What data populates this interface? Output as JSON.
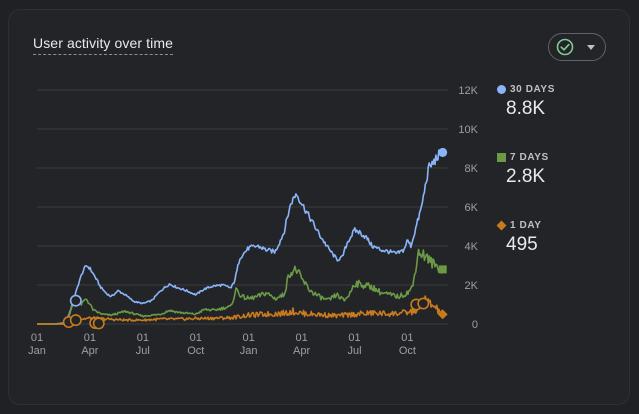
{
  "card": {
    "title": "User activity over time"
  },
  "picker": {
    "check_icon": "check-circle-icon",
    "caret_icon": "caret-down-icon",
    "check_color": "#81c995"
  },
  "legend": [
    {
      "label": "30 DAYS",
      "value": "8.8K",
      "marker": "circle",
      "color": "#8ab4f8"
    },
    {
      "label": "7 DAYS",
      "value": "2.8K",
      "marker": "square",
      "color": "#6a9a45"
    },
    {
      "label": "1 DAY",
      "value": "495",
      "marker": "diamond",
      "color": "#c87a1e"
    }
  ],
  "chart_data": {
    "type": "line",
    "title": "User activity over time",
    "xlabel": "",
    "ylabel": "",
    "ylim": [
      0,
      12000
    ],
    "yticks": [
      0,
      2000,
      4000,
      6000,
      8000,
      10000,
      12000
    ],
    "ytick_labels": [
      "0",
      "2K",
      "4K",
      "6K",
      "8K",
      "10K",
      "12K"
    ],
    "xlim": [
      0,
      23.3
    ],
    "xticks": [
      0,
      3,
      6,
      9,
      12,
      15,
      18,
      21
    ],
    "xtick_labels": [
      [
        "01",
        "Jan"
      ],
      [
        "01",
        "Apr"
      ],
      [
        "01",
        "Jul"
      ],
      [
        "01",
        "Oct"
      ],
      [
        "01",
        "Jan"
      ],
      [
        "01",
        "Apr"
      ],
      [
        "01",
        "Jul"
      ],
      [
        "01",
        "Oct"
      ]
    ],
    "grid": true,
    "legend_position": "right",
    "series": [
      {
        "name": "30 DAYS",
        "color": "#8ab4f8",
        "x": [
          0,
          1.0,
          1.5,
          1.8,
          2.1,
          2.4,
          2.6,
          2.8,
          3.0,
          3.3,
          3.6,
          3.9,
          4.2,
          4.6,
          5.0,
          5.5,
          6.0,
          6.5,
          7.0,
          7.5,
          8.0,
          8.5,
          9.0,
          9.5,
          10.0,
          10.5,
          11.0,
          11.2,
          11.5,
          12.0,
          12.5,
          13.0,
          13.5,
          14.0,
          14.2,
          14.4,
          14.7,
          15.0,
          15.5,
          16.0,
          16.5,
          17.0,
          17.3,
          17.6,
          18.0,
          18.3,
          18.7,
          19.0,
          19.5,
          20.0,
          20.4,
          20.8,
          21.0,
          21.2,
          21.5,
          21.8,
          22.0,
          22.2,
          22.5,
          22.8,
          23.0
        ],
        "y": [
          0,
          0,
          50,
          450,
          1300,
          2200,
          2700,
          3000,
          2850,
          2400,
          1900,
          1600,
          1400,
          1700,
          1500,
          1150,
          1050,
          1200,
          1700,
          2050,
          1850,
          1700,
          1500,
          1800,
          1950,
          2000,
          1850,
          2200,
          3400,
          3900,
          4000,
          3800,
          3700,
          4700,
          5500,
          6200,
          6700,
          6200,
          5400,
          4600,
          3900,
          3300,
          3400,
          4200,
          4800,
          4700,
          4400,
          4000,
          3800,
          3700,
          3600,
          3800,
          4300,
          4000,
          5000,
          6000,
          7000,
          8000,
          8300,
          8700,
          8800
        ]
      },
      {
        "name": "7 DAYS",
        "color": "#6a9a45",
        "x": [
          0,
          1.5,
          1.8,
          2.0,
          2.2,
          2.5,
          2.8,
          3.2,
          3.7,
          4.2,
          5.0,
          6.0,
          7.0,
          7.5,
          8.0,
          9.0,
          9.5,
          10.0,
          11.0,
          11.3,
          11.6,
          12.0,
          12.5,
          13.0,
          13.5,
          14.0,
          14.3,
          14.7,
          15.0,
          15.5,
          16.0,
          16.5,
          17.0,
          17.4,
          17.7,
          18.0,
          18.5,
          19.0,
          19.5,
          20.0,
          20.5,
          21.0,
          21.3,
          21.6,
          22.0,
          22.3,
          22.6,
          23.0
        ],
        "y": [
          0,
          0,
          400,
          900,
          1200,
          1000,
          1300,
          700,
          500,
          450,
          650,
          400,
          500,
          700,
          600,
          500,
          750,
          700,
          900,
          1800,
          1400,
          1300,
          1400,
          1600,
          1300,
          1500,
          2600,
          2800,
          2300,
          1700,
          1400,
          1200,
          1500,
          1200,
          1500,
          2100,
          2000,
          1900,
          1600,
          1500,
          1400,
          1600,
          1900,
          3700,
          3500,
          3200,
          3000,
          2800
        ]
      },
      {
        "name": "1 DAY",
        "color": "#c87a1e",
        "x": [
          0,
          1.5,
          2.0,
          2.5,
          3.0,
          4.0,
          5.0,
          6.0,
          7.0,
          8.0,
          9.0,
          10.0,
          11.0,
          12.0,
          13.0,
          14.0,
          14.5,
          15.0,
          16.0,
          17.0,
          18.0,
          19.0,
          20.0,
          21.0,
          21.5,
          22.0,
          22.5,
          23.0
        ],
        "y": [
          0,
          0,
          120,
          250,
          300,
          250,
          200,
          200,
          250,
          250,
          280,
          300,
          320,
          450,
          500,
          550,
          650,
          550,
          480,
          420,
          500,
          560,
          520,
          580,
          700,
          1200,
          900,
          495
        ]
      }
    ],
    "annotations": [
      {
        "series": "30 DAYS",
        "x": 2.2,
        "y": 1200,
        "marker": "circle-open"
      },
      {
        "series": "1 DAY",
        "x": 1.8,
        "y": 100,
        "marker": "circle-open"
      },
      {
        "series": "1 DAY",
        "x": 2.2,
        "y": 200,
        "marker": "circle-open"
      },
      {
        "series": "1 DAY",
        "x": 3.3,
        "y": 50,
        "marker": "circle-open"
      },
      {
        "series": "1 DAY",
        "x": 3.5,
        "y": 30,
        "marker": "circle-open"
      },
      {
        "series": "1 DAY",
        "x": 21.5,
        "y": 1000,
        "marker": "circle-open"
      },
      {
        "series": "1 DAY",
        "x": 21.9,
        "y": 1050,
        "marker": "circle-open"
      }
    ]
  }
}
